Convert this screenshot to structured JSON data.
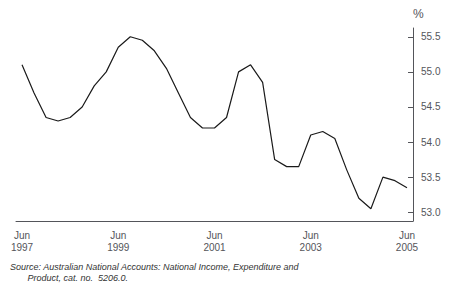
{
  "chart_data": {
    "type": "line",
    "categories": [
      "Jun\n1997",
      null,
      null,
      null,
      null,
      null,
      null,
      null,
      "Jun\n1999",
      null,
      null,
      null,
      null,
      null,
      null,
      null,
      "Jun\n2001",
      null,
      null,
      null,
      null,
      null,
      null,
      null,
      "Jun\n2003",
      null,
      null,
      null,
      null,
      null,
      null,
      null,
      "Jun\n2005"
    ],
    "values": [
      55.1,
      54.7,
      54.35,
      54.3,
      54.35,
      54.5,
      54.8,
      55.0,
      55.35,
      55.5,
      55.45,
      55.3,
      55.05,
      54.7,
      54.35,
      54.2,
      54.2,
      54.35,
      55.0,
      55.1,
      54.85,
      53.75,
      53.65,
      53.65,
      54.1,
      54.15,
      54.05,
      53.6,
      53.2,
      53.05,
      53.5,
      53.45,
      53.35
    ],
    "color": "#1a1a1a",
    "ylabel": "%",
    "ylim": [
      52.875,
      55.625
    ],
    "yticks": [
      {
        "value": 53.0,
        "label": "53.0"
      },
      {
        "value": 53.5,
        "label": "53.5"
      },
      {
        "value": 54.0,
        "label": "54.0"
      },
      {
        "value": 54.5,
        "label": "54.5"
      },
      {
        "value": 55.0,
        "label": "55.0"
      },
      {
        "value": 55.5,
        "label": "55.5"
      }
    ],
    "annotations": [
      "Source: Australian National Accounts: National Income, Expenditure and",
      "       Product, cat. no.  5206.0."
    ],
    "grid": false
  }
}
